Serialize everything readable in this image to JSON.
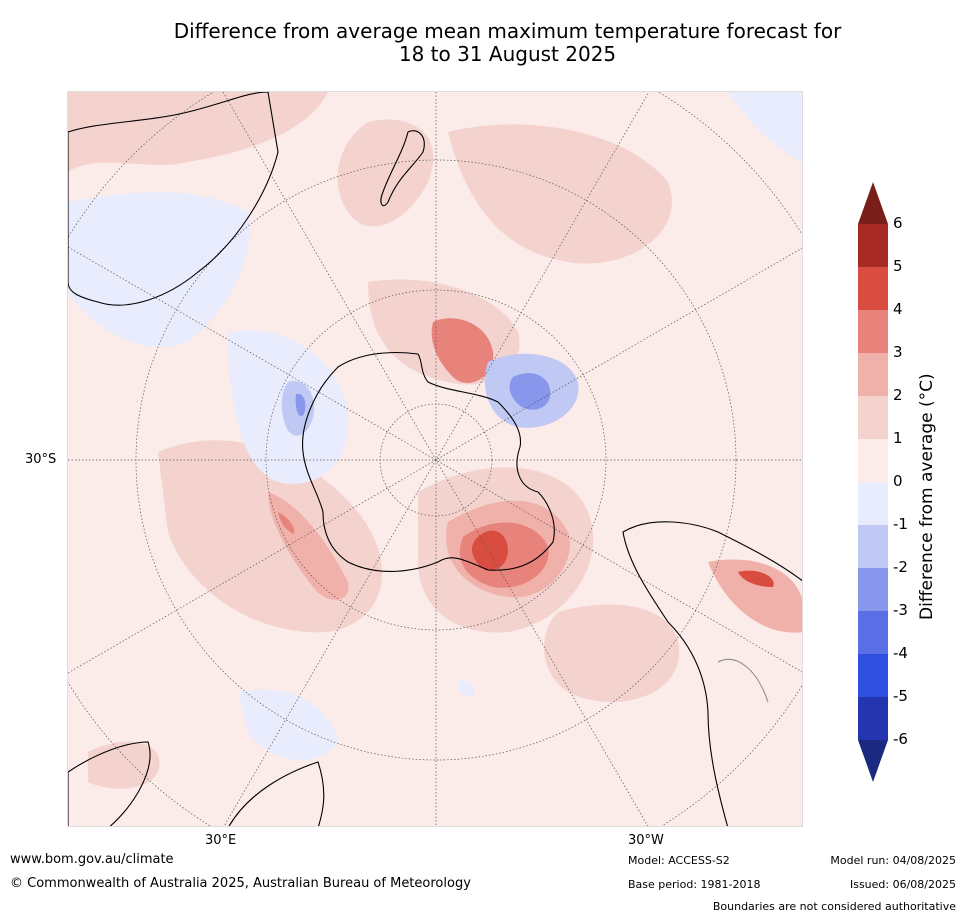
{
  "title": {
    "line1": "Difference from average mean maximum temperature forecast for",
    "line2": "18 to 31 August 2025"
  },
  "map_labels": {
    "lat_30s": "30°S",
    "lon_30e": "30°E",
    "lon_30w": "30°W"
  },
  "colorbar": {
    "title": "Difference from average (°C)",
    "ticks": [
      "6",
      "5",
      "4",
      "3",
      "2",
      "1",
      "0",
      "-1",
      "-2",
      "-3",
      "-4",
      "-5",
      "-6"
    ],
    "colors_top_to_bottom": [
      "#a72a25",
      "#d94c40",
      "#e8837b",
      "#f0b1aa",
      "#f4d3cf",
      "#fbebe9",
      "#e9ecfc",
      "#c0c8f4",
      "#8896ec",
      "#5a6ee6",
      "#2f4fe0",
      "#2535b0"
    ],
    "over_color": "#7a1e1a",
    "under_color": "#1b2a80"
  },
  "footer": {
    "url": "www.bom.gov.au/climate",
    "copyright": "© Commonwealth of Australia 2025, Australian Bureau of Meteorology",
    "model": "Model: ACCESS-S2",
    "base_period": "Base period: 1981-2018",
    "model_run": "Model run: 04/08/2025",
    "issued": "Issued: 06/08/2025",
    "disclaimer": "Boundaries are not considered authoritative"
  }
}
